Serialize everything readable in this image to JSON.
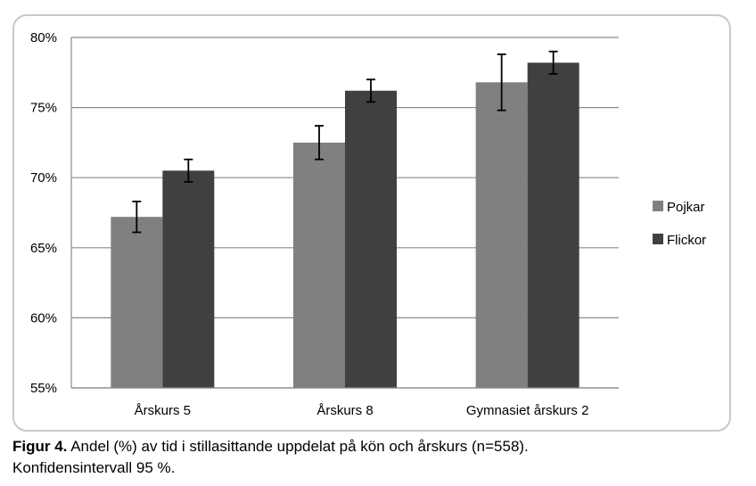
{
  "chart_data": {
    "type": "bar",
    "categories": [
      "Årskurs 5",
      "Årskurs 8",
      "Gymnasiet årskurs 2"
    ],
    "series": [
      {
        "name": "Pojkar",
        "color": "#808080",
        "values": [
          67.2,
          72.5,
          76.8
        ],
        "error_low": [
          66.1,
          71.3,
          74.8
        ],
        "error_high": [
          68.3,
          73.7,
          78.8
        ]
      },
      {
        "name": "Flickor",
        "color": "#404040",
        "values": [
          70.5,
          76.2,
          78.2
        ],
        "error_low": [
          69.7,
          75.4,
          77.4
        ],
        "error_high": [
          71.3,
          77.0,
          79.0
        ]
      }
    ],
    "ylim": [
      55,
      80
    ],
    "yticks": [
      55,
      60,
      65,
      70,
      75,
      80
    ],
    "ytick_labels": [
      "55%",
      "60%",
      "65%",
      "70%",
      "75%",
      "80%"
    ],
    "grid": true,
    "legend_position": "right",
    "title": "",
    "xlabel": "",
    "ylabel": ""
  },
  "caption": {
    "label": "Figur 4.",
    "text": " Andel (%) av tid i stillasittande uppdelat på kön och årskurs (n=558).",
    "line2": "Konfidensintervall 95 %."
  }
}
